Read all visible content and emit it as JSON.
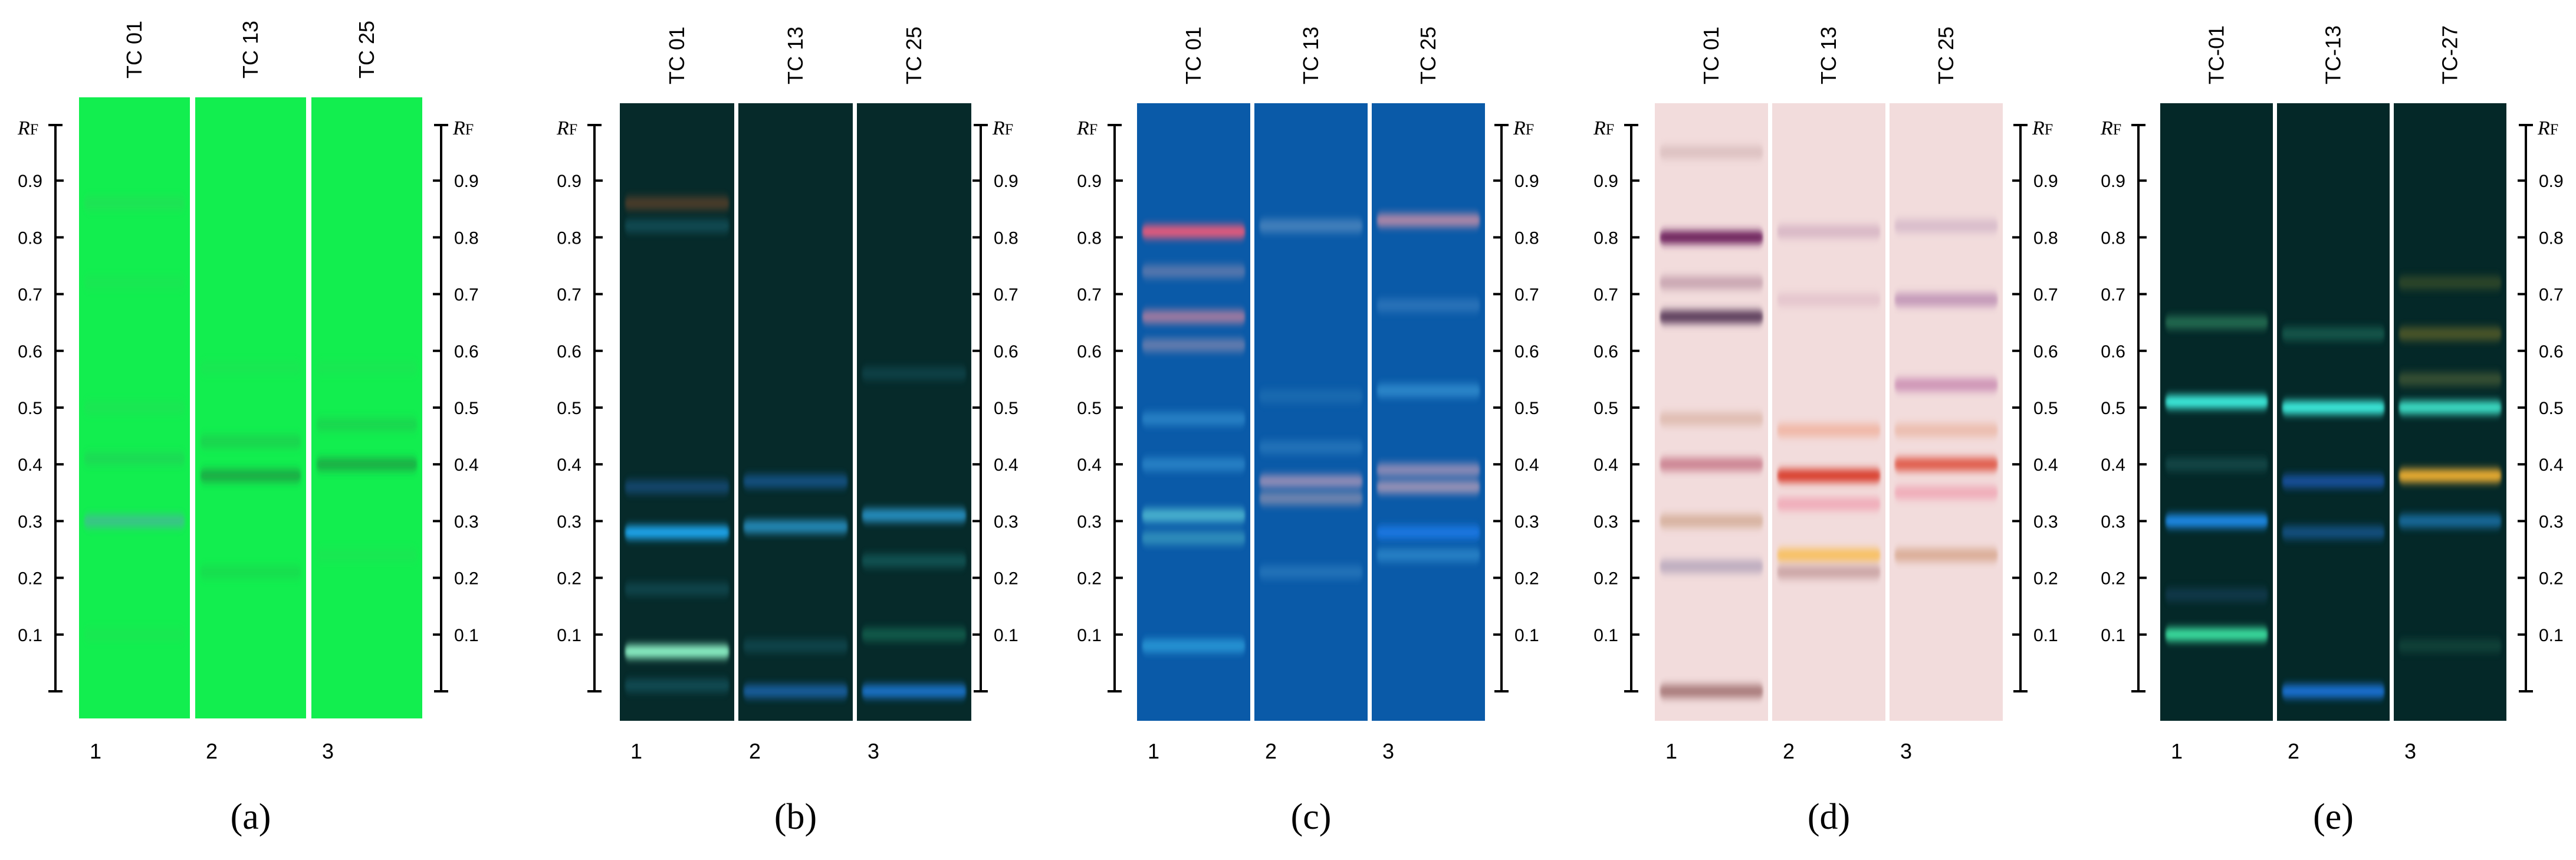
{
  "panels": [
    {
      "id": "a",
      "caption": "(a)",
      "background": "#12ee4f",
      "track_labels": [
        "TC 01",
        "TC 13",
        "TC 25"
      ],
      "lane_numbers": [
        "1",
        "2",
        "3"
      ],
      "axis_left": true,
      "axis_right": true,
      "lanes": [
        {
          "bands": [
            {
              "rf": 0.86,
              "color": "#2ad85a",
              "opacity": 0.5
            },
            {
              "rf": 0.72,
              "color": "#2ad85a",
              "opacity": 0.3
            },
            {
              "rf": 0.5,
              "color": "#2ad85a",
              "opacity": 0.35
            },
            {
              "rf": 0.41,
              "color": "#25c85a",
              "opacity": 0.5
            },
            {
              "rf": 0.3,
              "color": "#3fbf8f",
              "opacity": 0.9
            },
            {
              "rf": 0.1,
              "color": "#2ad85a",
              "opacity": 0.25
            }
          ]
        },
        {
          "bands": [
            {
              "rf": 0.57,
              "color": "#2ad85a",
              "opacity": 0.3
            },
            {
              "rf": 0.44,
              "color": "#22c050",
              "opacity": 0.55
            },
            {
              "rf": 0.38,
              "color": "#1aa445",
              "opacity": 0.9
            },
            {
              "rf": 0.21,
              "color": "#22c050",
              "opacity": 0.35
            }
          ]
        },
        {
          "bands": [
            {
              "rf": 0.57,
              "color": "#2ad85a",
              "opacity": 0.3
            },
            {
              "rf": 0.47,
              "color": "#22c050",
              "opacity": 0.5
            },
            {
              "rf": 0.4,
              "color": "#1aa445",
              "opacity": 0.85
            },
            {
              "rf": 0.24,
              "color": "#2ad85a",
              "opacity": 0.3
            }
          ]
        }
      ]
    },
    {
      "id": "b",
      "caption": "(b)",
      "background": "#062a2a",
      "track_labels": [
        "TC 01",
        "TC 13",
        "TC 25"
      ],
      "lane_numbers": [
        "1",
        "2",
        "3"
      ],
      "axis_left": true,
      "axis_right": true,
      "lanes": [
        {
          "bands": [
            {
              "rf": 0.86,
              "color": "#7a4a2a",
              "opacity": 0.6
            },
            {
              "rf": 0.82,
              "color": "#1e6a7a",
              "opacity": 0.5
            },
            {
              "rf": 0.36,
              "color": "#1a5a9a",
              "opacity": 0.6
            },
            {
              "rf": 0.28,
              "color": "#1fa7f0",
              "opacity": 1
            },
            {
              "rf": 0.18,
              "color": "#1e6a7a",
              "opacity": 0.4
            },
            {
              "rf": 0.07,
              "color": "#8ef5c8",
              "opacity": 1
            },
            {
              "rf": 0.01,
              "color": "#1e6a7a",
              "opacity": 0.5
            }
          ]
        },
        {
          "bands": [
            {
              "rf": 0.37,
              "color": "#1a6aba",
              "opacity": 0.6
            },
            {
              "rf": 0.29,
              "color": "#2a9ad0",
              "opacity": 0.85
            },
            {
              "rf": 0.08,
              "color": "#1e6a7a",
              "opacity": 0.4
            },
            {
              "rf": 0.0,
              "color": "#1a6aba",
              "opacity": 0.8
            }
          ]
        },
        {
          "bands": [
            {
              "rf": 0.56,
              "color": "#1e6a7a",
              "opacity": 0.35
            },
            {
              "rf": 0.31,
              "color": "#2a9ad0",
              "opacity": 0.9
            },
            {
              "rf": 0.23,
              "color": "#1e7a7a",
              "opacity": 0.5
            },
            {
              "rf": 0.1,
              "color": "#1e8a6a",
              "opacity": 0.5
            },
            {
              "rf": 0.0,
              "color": "#1a7ada",
              "opacity": 0.9
            }
          ]
        }
      ]
    },
    {
      "id": "c",
      "caption": "(c)",
      "background": "#0a5aa8",
      "track_labels": [
        "TC 01",
        "TC 13",
        "TC 25"
      ],
      "lane_numbers": [
        "1",
        "2",
        "3"
      ],
      "axis_left": true,
      "axis_right": true,
      "lanes": [
        {
          "bands": [
            {
              "rf": 0.81,
              "color": "#e85a7a",
              "opacity": 1
            },
            {
              "rf": 0.74,
              "color": "#8a8ab0",
              "opacity": 0.6
            },
            {
              "rf": 0.66,
              "color": "#a07aa0",
              "opacity": 1
            },
            {
              "rf": 0.61,
              "color": "#8a8ab0",
              "opacity": 0.7
            },
            {
              "rf": 0.48,
              "color": "#3a9ad8",
              "opacity": 0.6
            },
            {
              "rf": 0.4,
              "color": "#3a9ad8",
              "opacity": 0.6
            },
            {
              "rf": 0.31,
              "color": "#5ac8d8",
              "opacity": 0.8
            },
            {
              "rf": 0.27,
              "color": "#4ab0c8",
              "opacity": 0.6
            },
            {
              "rf": 0.08,
              "color": "#2a9ad8",
              "opacity": 0.9
            }
          ]
        },
        {
          "bands": [
            {
              "rf": 0.82,
              "color": "#6a9ac8",
              "opacity": 0.6
            },
            {
              "rf": 0.52,
              "color": "#2a7ab8",
              "opacity": 0.5
            },
            {
              "rf": 0.43,
              "color": "#3a8ac8",
              "opacity": 0.5
            },
            {
              "rf": 0.37,
              "color": "#9a90b8",
              "opacity": 0.95
            },
            {
              "rf": 0.34,
              "color": "#8a90b0",
              "opacity": 0.8
            },
            {
              "rf": 0.21,
              "color": "#3a8ac8",
              "opacity": 0.5
            }
          ]
        },
        {
          "bands": [
            {
              "rf": 0.83,
              "color": "#b88aa8",
              "opacity": 0.95
            },
            {
              "rf": 0.68,
              "color": "#4a8ac8",
              "opacity": 0.5
            },
            {
              "rf": 0.53,
              "color": "#3a9ad8",
              "opacity": 0.7
            },
            {
              "rf": 0.39,
              "color": "#9a90b8",
              "opacity": 0.9
            },
            {
              "rf": 0.36,
              "color": "#a898b8",
              "opacity": 0.9
            },
            {
              "rf": 0.28,
              "color": "#1a7ae8",
              "opacity": 0.9
            },
            {
              "rf": 0.24,
              "color": "#3a9ad8",
              "opacity": 0.6
            }
          ]
        }
      ]
    },
    {
      "id": "d",
      "caption": "(d)",
      "background": "#f2dcdc",
      "track_labels": [
        "TC 01",
        "TC 13",
        "TC 25"
      ],
      "lane_numbers": [
        "1",
        "2",
        "3"
      ],
      "axis_left": true,
      "axis_right": true,
      "lanes": [
        {
          "bands": [
            {
              "rf": 0.95,
              "color": "#c8a8a8",
              "opacity": 0.5
            },
            {
              "rf": 0.8,
              "color": "#6a1a5a",
              "opacity": 1
            },
            {
              "rf": 0.72,
              "color": "#b890a0",
              "opacity": 0.7
            },
            {
              "rf": 0.66,
              "color": "#5a3a5a",
              "opacity": 1
            },
            {
              "rf": 0.48,
              "color": "#d8b0a0",
              "opacity": 0.7
            },
            {
              "rf": 0.4,
              "color": "#c87a8a",
              "opacity": 0.9
            },
            {
              "rf": 0.3,
              "color": "#d0a890",
              "opacity": 0.8
            },
            {
              "rf": 0.22,
              "color": "#b0a0b8",
              "opacity": 0.8
            },
            {
              "rf": 0.0,
              "color": "#a07070",
              "opacity": 0.9
            }
          ]
        },
        {
          "bands": [
            {
              "rf": 0.81,
              "color": "#c8a0b8",
              "opacity": 0.6
            },
            {
              "rf": 0.69,
              "color": "#d8b0c0",
              "opacity": 0.5
            },
            {
              "rf": 0.46,
              "color": "#f0a890",
              "opacity": 0.7
            },
            {
              "rf": 0.38,
              "color": "#d83a2a",
              "opacity": 1
            },
            {
              "rf": 0.33,
              "color": "#f0a0b0",
              "opacity": 0.8
            },
            {
              "rf": 0.24,
              "color": "#f8c060",
              "opacity": 1
            },
            {
              "rf": 0.21,
              "color": "#c8a0a0",
              "opacity": 0.9
            }
          ]
        },
        {
          "bands": [
            {
              "rf": 0.82,
              "color": "#c8a8c0",
              "opacity": 0.6
            },
            {
              "rf": 0.69,
              "color": "#b888b0",
              "opacity": 0.8
            },
            {
              "rf": 0.54,
              "color": "#c888b0",
              "opacity": 0.85
            },
            {
              "rf": 0.46,
              "color": "#e8a890",
              "opacity": 0.6
            },
            {
              "rf": 0.4,
              "color": "#e05a4a",
              "opacity": 1
            },
            {
              "rf": 0.35,
              "color": "#f0a0b0",
              "opacity": 0.8
            },
            {
              "rf": 0.24,
              "color": "#d8a890",
              "opacity": 0.9
            }
          ]
        }
      ]
    },
    {
      "id": "e",
      "caption": "(e)",
      "background": "#042828",
      "track_labels": [
        "TC-01",
        "TC-13",
        "TC-27"
      ],
      "lane_numbers": [
        "1",
        "2",
        "3"
      ],
      "axis_left": true,
      "axis_right": true,
      "lanes": [
        {
          "bands": [
            {
              "rf": 0.65,
              "color": "#2a7a5a",
              "opacity": 0.8
            },
            {
              "rf": 0.51,
              "color": "#3ef0e0",
              "opacity": 1
            },
            {
              "rf": 0.4,
              "color": "#1e5a5a",
              "opacity": 0.6
            },
            {
              "rf": 0.3,
              "color": "#1a8ae8",
              "opacity": 1
            },
            {
              "rf": 0.17,
              "color": "#1e4a6a",
              "opacity": 0.5
            },
            {
              "rf": 0.1,
              "color": "#3ae0a0",
              "opacity": 1
            }
          ]
        },
        {
          "bands": [
            {
              "rf": 0.63,
              "color": "#1e6a5a",
              "opacity": 0.7
            },
            {
              "rf": 0.5,
              "color": "#3ef0e0",
              "opacity": 1
            },
            {
              "rf": 0.37,
              "color": "#1a5ab8",
              "opacity": 0.8
            },
            {
              "rf": 0.28,
              "color": "#1a6aba",
              "opacity": 0.6
            },
            {
              "rf": 0.0,
              "color": "#1a7ae8",
              "opacity": 0.9
            }
          ]
        },
        {
          "bands": [
            {
              "rf": 0.72,
              "color": "#4a5a2a",
              "opacity": 0.6
            },
            {
              "rf": 0.63,
              "color": "#6a6a2a",
              "opacity": 0.7
            },
            {
              "rf": 0.55,
              "color": "#5a6a3a",
              "opacity": 0.6
            },
            {
              "rf": 0.5,
              "color": "#3ee0c8",
              "opacity": 1
            },
            {
              "rf": 0.38,
              "color": "#f0b030",
              "opacity": 1
            },
            {
              "rf": 0.3,
              "color": "#1a7ab8",
              "opacity": 0.8
            },
            {
              "rf": 0.08,
              "color": "#1e5a4a",
              "opacity": 0.5
            }
          ]
        }
      ]
    }
  ],
  "axis": {
    "label_main": "R",
    "label_sub": "F",
    "ticks": [
      "0.9",
      "0.8",
      "0.7",
      "0.6",
      "0.5",
      "0.4",
      "0.3",
      "0.2",
      "0.1"
    ],
    "tick_values": [
      0.9,
      0.8,
      0.7,
      0.6,
      0.5,
      0.4,
      0.3,
      0.2,
      0.1
    ]
  }
}
